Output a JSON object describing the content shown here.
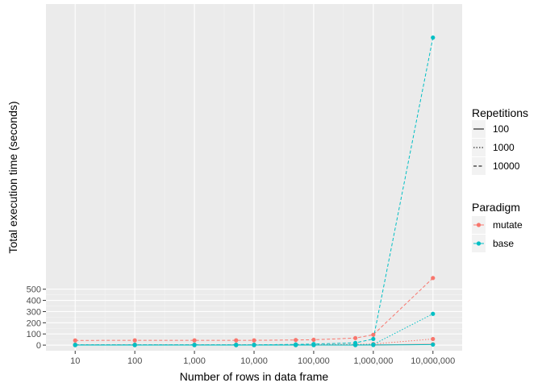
{
  "chart_data": {
    "type": "line",
    "title": "",
    "xlabel": "Number of rows in data frame",
    "ylabel": "Total execution time (seconds)",
    "x_scale": "log10",
    "x_ticks": [
      10,
      100,
      1000,
      10000,
      100000,
      1000000,
      10000000
    ],
    "x_tick_labels": [
      "10",
      "100",
      "1,000",
      "10,000",
      "100,000",
      "1,000,000",
      "10,000,000"
    ],
    "x_values": [
      10,
      100,
      1000,
      5000,
      10000,
      50000,
      100000,
      500000,
      1000000,
      10000000
    ],
    "y_ticks": [
      0,
      100,
      200,
      300,
      400,
      500
    ],
    "y_tick_labels": [
      "0",
      "100",
      "200",
      "300",
      "400",
      "500"
    ],
    "ylim": [
      -50,
      3050
    ],
    "grid": true,
    "legend_position": "right",
    "legend_repetitions": {
      "title": "Repetitions",
      "entries": [
        {
          "label": "100",
          "dash": "solid"
        },
        {
          "label": "1000",
          "dash": "dotted"
        },
        {
          "label": "10000",
          "dash": "dashed"
        }
      ]
    },
    "legend_paradigm": {
      "title": "Paradigm",
      "entries": [
        {
          "label": "mutate",
          "color": "#F8766D"
        },
        {
          "label": "base",
          "color": "#00BFC4"
        }
      ]
    },
    "series": [
      {
        "paradigm": "mutate",
        "repetitions": "100",
        "color": "#F8766D",
        "dash": "solid",
        "values": [
          0.5,
          0.5,
          0.5,
          0.5,
          0.5,
          0.7,
          0.8,
          1.0,
          1.5,
          8
        ]
      },
      {
        "paradigm": "mutate",
        "repetitions": "1000",
        "color": "#F8766D",
        "dash": "dotted",
        "values": [
          4,
          4,
          4,
          4,
          4,
          5,
          5,
          7,
          10,
          55
        ]
      },
      {
        "paradigm": "mutate",
        "repetitions": "10000",
        "color": "#F8766D",
        "dash": "dashed",
        "values": [
          42,
          43,
          43,
          43,
          43,
          46,
          48,
          63,
          93,
          600
        ]
      },
      {
        "paradigm": "base",
        "repetitions": "100",
        "color": "#00BFC4",
        "dash": "solid",
        "values": [
          0.05,
          0.05,
          0.05,
          0.05,
          0.05,
          0.1,
          0.2,
          0.5,
          1,
          5
        ]
      },
      {
        "paradigm": "base",
        "repetitions": "1000",
        "color": "#00BFC4",
        "dash": "dotted",
        "values": [
          0.3,
          0.3,
          0.3,
          0.4,
          0.4,
          0.8,
          1.5,
          3,
          6,
          280
        ]
      },
      {
        "paradigm": "base",
        "repetitions": "10000",
        "color": "#00BFC4",
        "dash": "dashed",
        "values": [
          3,
          3,
          3,
          3,
          3,
          6,
          10,
          20,
          55,
          2750
        ]
      }
    ]
  }
}
